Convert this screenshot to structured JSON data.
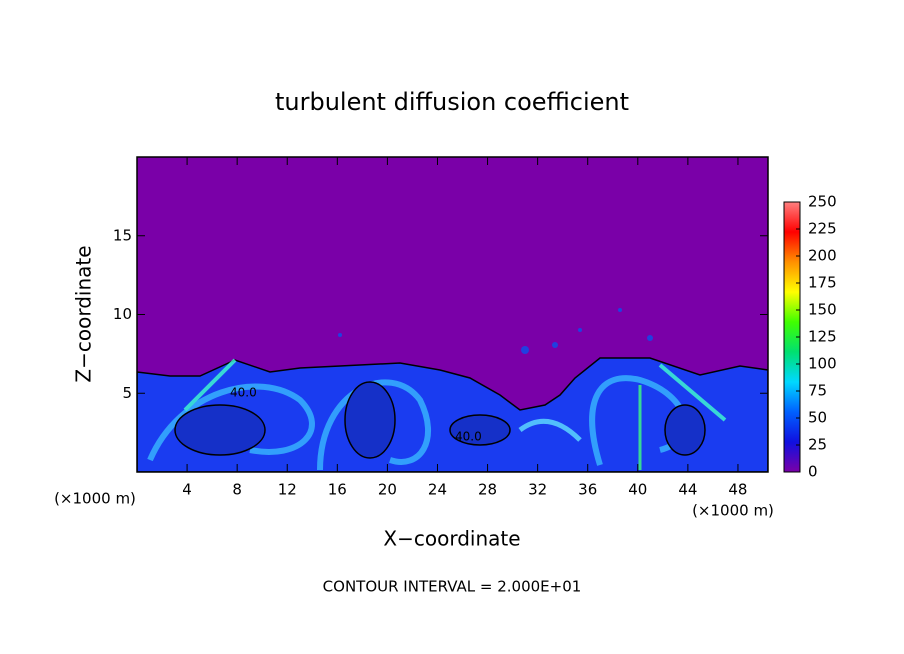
{
  "chart_data": {
    "type": "contour",
    "title": "turbulent diffusion coefficient",
    "xlabel": "X−coordinate",
    "ylabel": "Z−coordinate",
    "x_unit": "(×1000 m)",
    "y_unit": "(×1000 m)",
    "annotation": "CONTOUR INTERVAL = 2.000E+01",
    "contour_labels": [
      "40.0",
      "40.0"
    ],
    "xlim": [
      0,
      50.4
    ],
    "xticks": [
      4,
      8,
      12,
      16,
      20,
      24,
      28,
      32,
      36,
      40,
      44,
      48
    ],
    "ylim": [
      0,
      20
    ],
    "yticks": [
      5,
      10,
      15
    ],
    "clim": [
      0,
      250
    ],
    "cticks": [
      0,
      25,
      50,
      75,
      100,
      125,
      150,
      175,
      200,
      225,
      250
    ],
    "colormap": [
      "#7a00a8",
      "#1010e0",
      "#0060ff",
      "#00d8ff",
      "#00e070",
      "#40ff00",
      "#ffff00",
      "#ff9000",
      "#ff0000",
      "#ff8080"
    ]
  }
}
